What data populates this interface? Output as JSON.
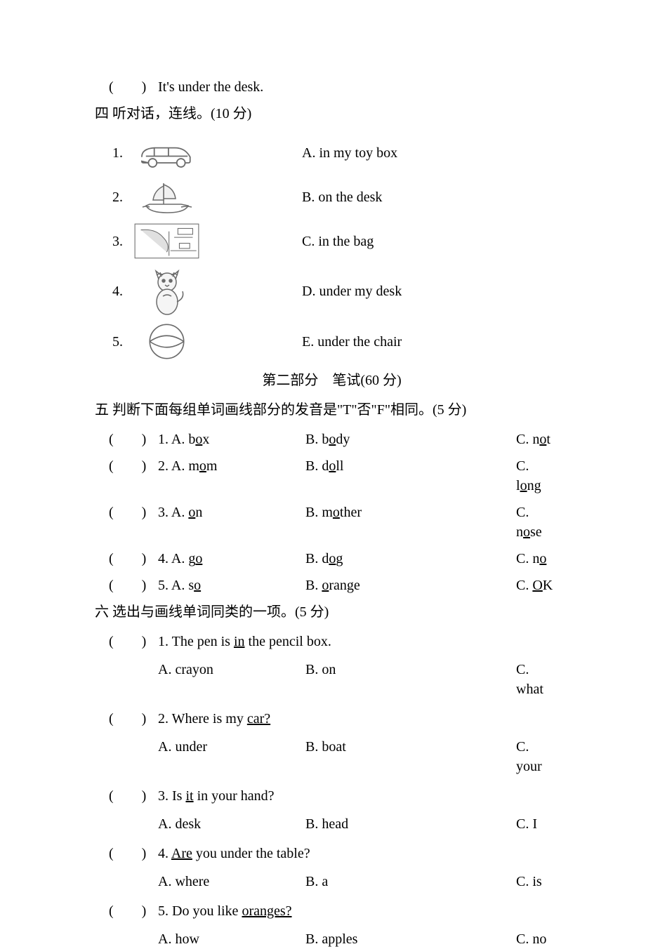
{
  "topLine": {
    "paren": "(　　)",
    "text": "It's under the desk."
  },
  "section4": {
    "title": "四 听对话，连线。(10 分)",
    "items": [
      {
        "num": "1.",
        "icon": "car",
        "ans": "A. in my toy box"
      },
      {
        "num": "2.",
        "icon": "ship",
        "ans": "B. on the desk"
      },
      {
        "num": "3.",
        "icon": "map",
        "ans": "C. in the bag"
      },
      {
        "num": "4.",
        "icon": "cat",
        "ans": "D. under my desk"
      },
      {
        "num": "5.",
        "icon": "ball",
        "ans": "E. under the chair"
      }
    ]
  },
  "partHeader": "第二部分　笔试(60 分)",
  "section5": {
    "title": "五 判断下面每组单词画线部分的发音是\"T\"否\"F\"相同。(5 分)",
    "rows": [
      {
        "paren": "(　　)",
        "pre_a": "1. A. b",
        "u_a": "o",
        "post_a": "x",
        "pre_b": "B. b",
        "u_b": "o",
        "post_b": "dy",
        "pre_c": "C. n",
        "u_c": "o",
        "post_c": "t"
      },
      {
        "paren": "(　　)",
        "pre_a": "2. A. m",
        "u_a": "o",
        "post_a": "m",
        "pre_b": "B. d",
        "u_b": "o",
        "post_b": "ll",
        "pre_c": "C. l",
        "u_c": "o",
        "post_c": "ng"
      },
      {
        "paren": "(　　)",
        "pre_a": "3. A. ",
        "u_a": "o",
        "post_a": "n",
        "pre_b": "B. m",
        "u_b": "o",
        "post_b": "ther",
        "pre_c": "C. n",
        "u_c": "o",
        "post_c": "se"
      },
      {
        "paren": "(　　)",
        "pre_a": "4. A. g",
        "u_a": "o",
        "post_a": "",
        "pre_b": "B. d",
        "u_b": "o",
        "post_b": "g",
        "pre_c": "C. n",
        "u_c": "o",
        "post_c": ""
      },
      {
        "paren": "(　　)",
        "pre_a": "5. A. s",
        "u_a": "o",
        "post_a": "",
        "pre_b": "B. ",
        "u_b": "o",
        "post_b": "range",
        "pre_c": "C. ",
        "u_c": "O",
        "post_c": "K"
      }
    ]
  },
  "section6": {
    "title": "六 选出与画线单词同类的一项。(5 分)",
    "items": [
      {
        "paren": "(　　)",
        "pre": "1. The pen is ",
        "u": "in",
        "post": " the pencil box.",
        "a": "A. crayon",
        "b": "B. on",
        "c": "C. what"
      },
      {
        "paren": "(　　)",
        "pre": "2. Where is my ",
        "u": "car?",
        "post": "",
        "a": "A. under",
        "b": "B. boat",
        "c": "C. your"
      },
      {
        "paren": "(　　)",
        "pre": "3. Is ",
        "u": "it",
        "post": " in your hand?",
        "a": "A. desk",
        "b": "B. head",
        "c": "C. I"
      },
      {
        "paren": "(　　)",
        "pre": "4. ",
        "u": "Are",
        "post": " you under the table?",
        "a": "A. where",
        "b": "B. a",
        "c": "C. is"
      },
      {
        "paren": "(　　)",
        "pre": "5. Do you like ",
        "u": "oranges?",
        "post": "",
        "a": "A. how",
        "b": "B. apples",
        "c": "C. no"
      }
    ]
  }
}
